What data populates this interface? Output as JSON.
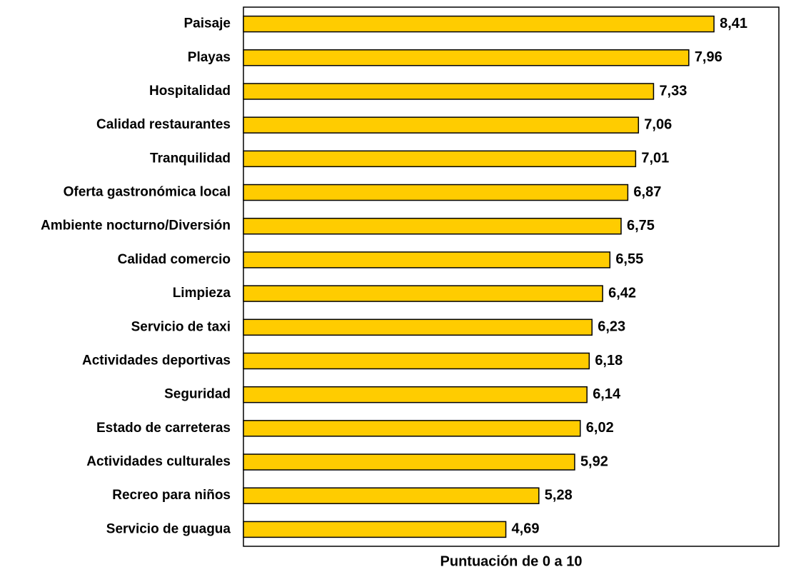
{
  "chart_data": {
    "type": "bar",
    "orientation": "horizontal",
    "x_label": "Puntuación de 0 a 10",
    "categories": [
      "Paisaje",
      "Playas",
      "Hospitalidad",
      "Calidad restaurantes",
      "Tranquilidad",
      "Oferta gastronómica local",
      "Ambiente nocturno/Diversión",
      "Calidad comercio",
      "Limpieza",
      "Servicio de taxi",
      "Actividades deportivas",
      "Seguridad",
      "Estado de carreteras",
      "Actividades culturales",
      "Recreo para niños",
      "Servicio de guagua"
    ],
    "values": [
      8.41,
      7.96,
      7.33,
      7.06,
      7.01,
      6.87,
      6.75,
      6.55,
      6.42,
      6.23,
      6.18,
      6.14,
      6.02,
      5.92,
      5.28,
      4.69
    ],
    "value_labels": [
      "8,41",
      "7,96",
      "7,33",
      "7,06",
      "7,01",
      "6,87",
      "6,75",
      "6,55",
      "6,42",
      "6,23",
      "6,18",
      "6,14",
      "6,02",
      "5,92",
      "5,28",
      "4,69"
    ],
    "color": "#ffcc00",
    "xlim": [
      0,
      9.57
    ]
  }
}
